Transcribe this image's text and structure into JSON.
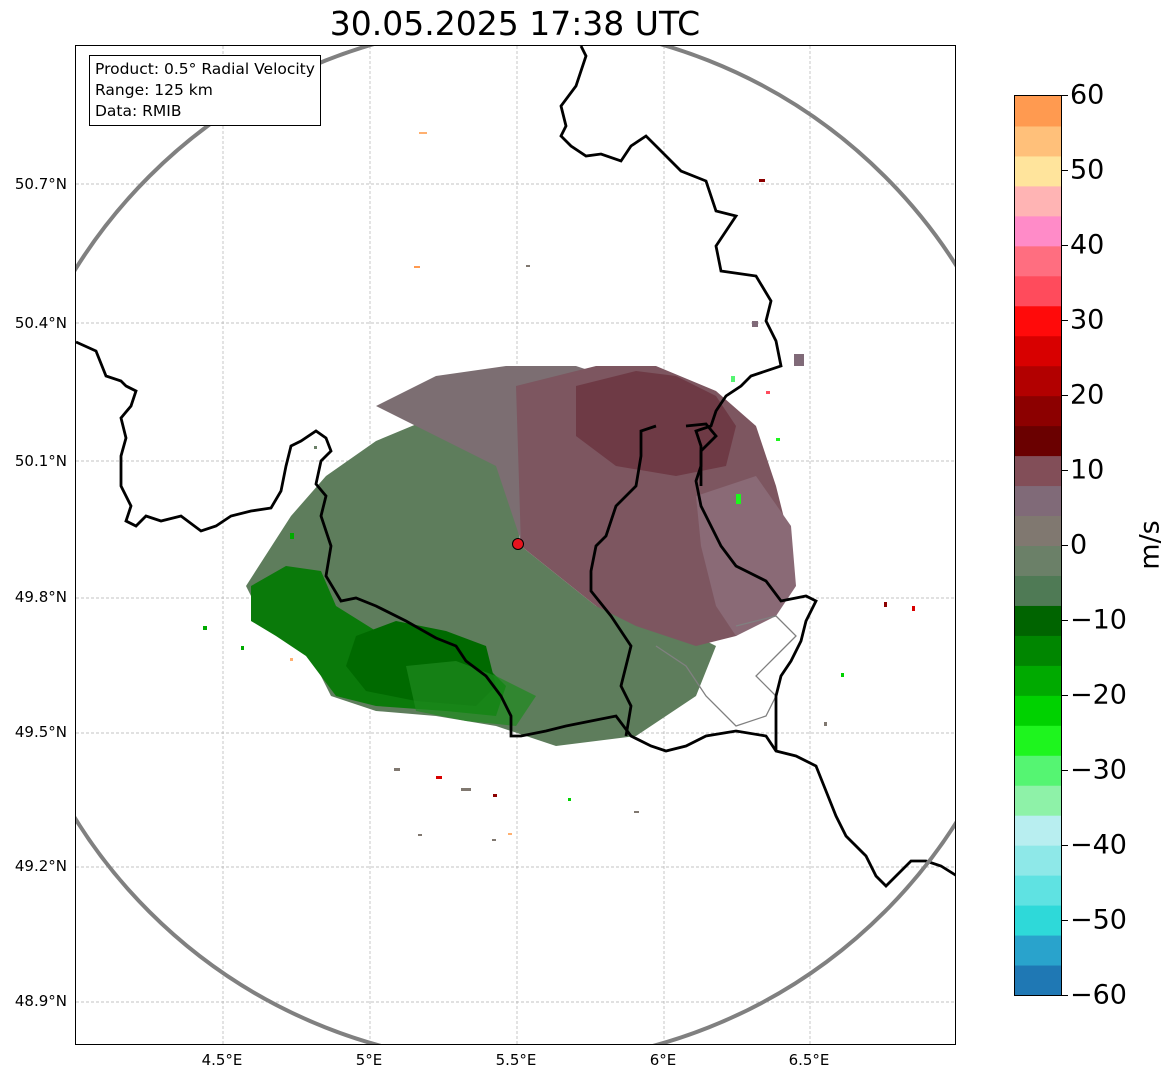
{
  "title": "30.05.2025 17:38 UTC",
  "info_box": {
    "line1": "Product: 0.5° Radial Velocity",
    "line2": "Range: 125 km",
    "line3": "Data: RMIB"
  },
  "map": {
    "lat_ticks": [
      "50.7°N",
      "50.4°N",
      "50.1°N",
      "49.8°N",
      "49.5°N",
      "49.2°N",
      "48.9°N"
    ],
    "lon_ticks": [
      "4.5°E",
      "5°E",
      "5.5°E",
      "6°E",
      "6.5°E"
    ],
    "radar_site_color": "#e8141e",
    "range_ring_color": "#808080",
    "border_color": "#000000",
    "gridline_color": "#b0b0b0"
  },
  "colorbar": {
    "unit": "m/s",
    "ticks": [
      "60",
      "50",
      "40",
      "30",
      "20",
      "10",
      "0",
      "−10",
      "−20",
      "−30",
      "−40",
      "−50",
      "−60"
    ],
    "colors": [
      "#1f78b4",
      "#29a3cc",
      "#2ed9d9",
      "#5fe2e2",
      "#8ee8e8",
      "#b8eef0",
      "#8ef2a8",
      "#55f572",
      "#1ef51e",
      "#00d200",
      "#00aa00",
      "#008600",
      "#006400",
      "#4f7a55",
      "#6b8068",
      "#807870",
      "#806a78",
      "#824e58",
      "#6a0000",
      "#8c0000",
      "#b20000",
      "#d80000",
      "#ff0a0a",
      "#ff4b5c",
      "#ff6e80",
      "#ff8bc8",
      "#ffb4b4",
      "#ffe49c",
      "#ffc07a",
      "#ff9a50"
    ]
  }
}
